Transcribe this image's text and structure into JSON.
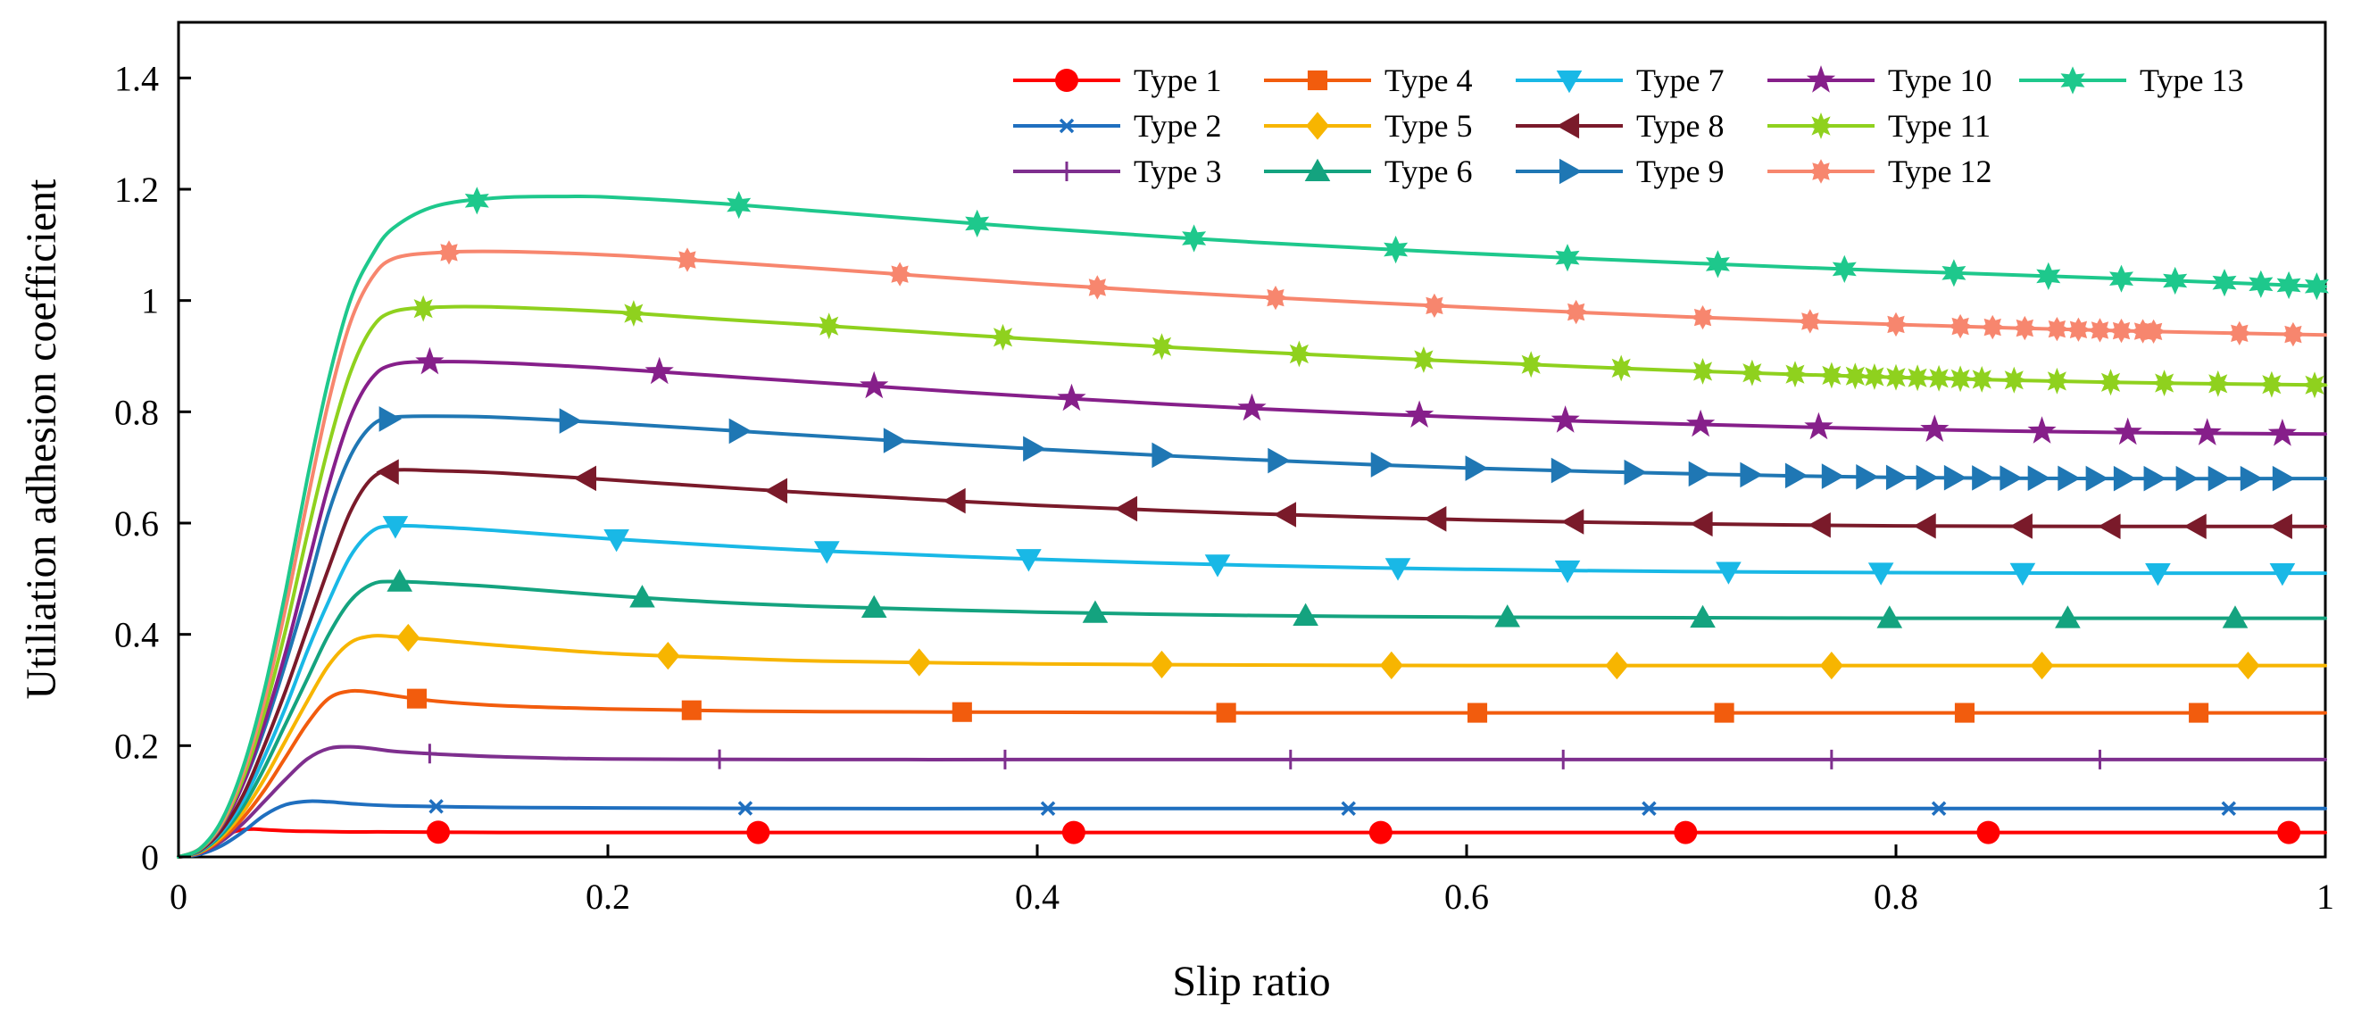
{
  "chart_data": {
    "type": "line",
    "title": "",
    "xlabel": "Slip ratio",
    "ylabel": "Utiliation adhesion coefficient",
    "xlim": [
      0,
      1
    ],
    "ylim": [
      0,
      1.5
    ],
    "xticks": [
      0,
      0.2,
      0.4,
      0.6,
      0.8,
      1
    ],
    "xtick_labels": [
      "0",
      "0.2",
      "0.4",
      "0.6",
      "0.8",
      "1"
    ],
    "yticks": [
      0,
      0.2,
      0.4,
      0.6,
      0.8,
      1,
      1.2,
      1.4
    ],
    "ytick_labels": [
      "0",
      "0.2",
      "0.4",
      "0.6",
      "0.8",
      "1",
      "1.2",
      "1.4"
    ],
    "grid": false,
    "legend_position": "top-right",
    "series": [
      {
        "name": "Type 1",
        "color": "#ff0000",
        "marker": "circle",
        "x": [
          0,
          0.005,
          0.01,
          0.015,
          0.02,
          0.025,
          0.03,
          0.035,
          0.04,
          0.05,
          0.06,
          0.08,
          0.1,
          0.15,
          0.2,
          0.3,
          0.4,
          0.5,
          0.6,
          0.7,
          0.8,
          0.9,
          1.0
        ],
        "y": [
          0,
          0.003,
          0.011,
          0.022,
          0.034,
          0.044,
          0.049,
          0.05,
          0.049,
          0.047,
          0.046,
          0.045,
          0.045,
          0.044,
          0.044,
          0.044,
          0.044,
          0.044,
          0.044,
          0.044,
          0.044,
          0.044,
          0.044
        ],
        "marker_x": [
          0.121,
          0.27,
          0.417,
          0.56,
          0.702,
          0.843,
          0.983
        ]
      },
      {
        "name": "Type 2",
        "color": "#1f6fbf",
        "marker": "x",
        "x": [
          0,
          0.01,
          0.02,
          0.03,
          0.04,
          0.05,
          0.06,
          0.07,
          0.08,
          0.1,
          0.15,
          0.2,
          0.3,
          0.4,
          0.5,
          0.6,
          0.7,
          0.8,
          0.9,
          1.0
        ],
        "y": [
          0,
          0.005,
          0.02,
          0.045,
          0.075,
          0.094,
          0.1,
          0.099,
          0.096,
          0.092,
          0.089,
          0.088,
          0.087,
          0.087,
          0.087,
          0.087,
          0.087,
          0.087,
          0.087,
          0.087
        ],
        "marker_x": [
          0.12,
          0.264,
          0.405,
          0.545,
          0.685,
          0.82,
          0.955
        ]
      },
      {
        "name": "Type 3",
        "color": "#7e2f8e",
        "marker": "plus",
        "x": [
          0,
          0.01,
          0.02,
          0.03,
          0.04,
          0.05,
          0.06,
          0.07,
          0.08,
          0.09,
          0.1,
          0.12,
          0.15,
          0.2,
          0.3,
          0.4,
          0.5,
          0.6,
          0.7,
          0.8,
          0.9,
          1.0
        ],
        "y": [
          0,
          0.007,
          0.028,
          0.06,
          0.1,
          0.14,
          0.176,
          0.195,
          0.198,
          0.195,
          0.19,
          0.185,
          0.18,
          0.176,
          0.175,
          0.175,
          0.175,
          0.175,
          0.175,
          0.175,
          0.175,
          0.175
        ],
        "marker_x": [
          0.117,
          0.252,
          0.385,
          0.518,
          0.645,
          0.77,
          0.895
        ]
      },
      {
        "name": "Type 4",
        "color": "#f25c0d",
        "marker": "square",
        "x": [
          0,
          0.01,
          0.02,
          0.03,
          0.04,
          0.05,
          0.06,
          0.07,
          0.08,
          0.09,
          0.1,
          0.12,
          0.15,
          0.2,
          0.25,
          0.3,
          0.4,
          0.5,
          0.6,
          0.7,
          0.8,
          0.9,
          1.0
        ],
        "y": [
          0,
          0.008,
          0.032,
          0.07,
          0.12,
          0.18,
          0.24,
          0.285,
          0.298,
          0.296,
          0.29,
          0.28,
          0.272,
          0.266,
          0.263,
          0.261,
          0.26,
          0.259,
          0.259,
          0.259,
          0.259,
          0.259,
          0.259
        ],
        "marker_x": [
          0.111,
          0.239,
          0.365,
          0.488,
          0.605,
          0.72,
          0.832,
          0.941
        ]
      },
      {
        "name": "Type 5",
        "color": "#f7b500",
        "marker": "diamond",
        "x": [
          0,
          0.01,
          0.02,
          0.03,
          0.04,
          0.05,
          0.06,
          0.07,
          0.08,
          0.09,
          0.1,
          0.12,
          0.15,
          0.2,
          0.25,
          0.3,
          0.4,
          0.5,
          0.6,
          0.7,
          0.8,
          0.9,
          1.0
        ],
        "y": [
          0,
          0.009,
          0.036,
          0.08,
          0.14,
          0.21,
          0.28,
          0.345,
          0.385,
          0.397,
          0.396,
          0.39,
          0.38,
          0.366,
          0.358,
          0.352,
          0.347,
          0.345,
          0.344,
          0.344,
          0.344,
          0.344,
          0.344
        ],
        "marker_x": [
          0.107,
          0.228,
          0.345,
          0.458,
          0.565,
          0.67,
          0.77,
          0.868,
          0.964
        ]
      },
      {
        "name": "Type 6",
        "color": "#14a37f",
        "marker": "triangle-up",
        "x": [
          0,
          0.01,
          0.02,
          0.03,
          0.04,
          0.05,
          0.06,
          0.07,
          0.08,
          0.09,
          0.1,
          0.12,
          0.15,
          0.2,
          0.25,
          0.3,
          0.4,
          0.5,
          0.6,
          0.7,
          0.8,
          0.9,
          1.0
        ],
        "y": [
          0,
          0.01,
          0.04,
          0.09,
          0.16,
          0.24,
          0.32,
          0.4,
          0.46,
          0.49,
          0.495,
          0.492,
          0.485,
          0.47,
          0.458,
          0.45,
          0.44,
          0.434,
          0.431,
          0.43,
          0.429,
          0.429,
          0.429
        ],
        "marker_x": [
          0.103,
          0.216,
          0.324,
          0.427,
          0.525,
          0.619,
          0.71,
          0.797,
          0.88,
          0.958
        ]
      },
      {
        "name": "Type 7",
        "color": "#19b8e6",
        "marker": "triangle-down",
        "x": [
          0,
          0.01,
          0.02,
          0.03,
          0.04,
          0.05,
          0.06,
          0.07,
          0.08,
          0.09,
          0.1,
          0.12,
          0.15,
          0.2,
          0.25,
          0.3,
          0.4,
          0.5,
          0.6,
          0.7,
          0.8,
          0.9,
          1.0
        ],
        "y": [
          0,
          0.011,
          0.044,
          0.1,
          0.18,
          0.27,
          0.37,
          0.46,
          0.54,
          0.585,
          0.595,
          0.593,
          0.586,
          0.572,
          0.56,
          0.55,
          0.535,
          0.524,
          0.517,
          0.513,
          0.511,
          0.51,
          0.51
        ],
        "marker_x": [
          0.101,
          0.204,
          0.302,
          0.396,
          0.484,
          0.568,
          0.647,
          0.722,
          0.793,
          0.859,
          0.922,
          0.98
        ]
      },
      {
        "name": "Type 8",
        "color": "#7a1a2a",
        "marker": "triangle-left",
        "x": [
          0,
          0.01,
          0.02,
          0.03,
          0.04,
          0.05,
          0.06,
          0.07,
          0.08,
          0.09,
          0.1,
          0.12,
          0.15,
          0.2,
          0.25,
          0.3,
          0.4,
          0.5,
          0.6,
          0.7,
          0.8,
          0.9,
          1.0
        ],
        "y": [
          0,
          0.012,
          0.048,
          0.11,
          0.2,
          0.3,
          0.41,
          0.52,
          0.62,
          0.68,
          0.695,
          0.694,
          0.69,
          0.678,
          0.665,
          0.653,
          0.632,
          0.617,
          0.606,
          0.599,
          0.595,
          0.594,
          0.594
        ],
        "marker_x": [
          0.098,
          0.19,
          0.279,
          0.362,
          0.442,
          0.516,
          0.586,
          0.65,
          0.71,
          0.765,
          0.814,
          0.859,
          0.9,
          0.94,
          0.98
        ]
      },
      {
        "name": "Type 9",
        "color": "#1f77b4",
        "marker": "triangle-right",
        "x": [
          0,
          0.01,
          0.02,
          0.03,
          0.04,
          0.05,
          0.06,
          0.07,
          0.08,
          0.09,
          0.1,
          0.12,
          0.15,
          0.2,
          0.25,
          0.3,
          0.4,
          0.5,
          0.6,
          0.7,
          0.8,
          0.9,
          1.0
        ],
        "y": [
          0,
          0.013,
          0.055,
          0.13,
          0.23,
          0.35,
          0.48,
          0.62,
          0.72,
          0.775,
          0.79,
          0.792,
          0.79,
          0.78,
          0.768,
          0.756,
          0.733,
          0.714,
          0.699,
          0.689,
          0.682,
          0.68,
          0.68
        ],
        "marker_x": [
          0.098,
          0.182,
          0.261,
          0.333,
          0.398,
          0.458,
          0.512,
          0.56,
          0.604,
          0.644,
          0.678,
          0.708,
          0.732,
          0.753,
          0.77,
          0.786,
          0.8,
          0.814,
          0.827,
          0.84,
          0.853,
          0.866,
          0.88,
          0.893,
          0.906,
          0.92,
          0.935,
          0.95,
          0.965,
          0.98
        ]
      },
      {
        "name": "Type 10",
        "color": "#861f8a",
        "marker": "star",
        "x": [
          0,
          0.01,
          0.02,
          0.03,
          0.04,
          0.05,
          0.06,
          0.07,
          0.08,
          0.09,
          0.1,
          0.12,
          0.15,
          0.2,
          0.25,
          0.3,
          0.4,
          0.5,
          0.6,
          0.7,
          0.8,
          0.9,
          1.0
        ],
        "y": [
          0,
          0.013,
          0.055,
          0.13,
          0.24,
          0.37,
          0.52,
          0.67,
          0.79,
          0.86,
          0.885,
          0.89,
          0.888,
          0.878,
          0.865,
          0.852,
          0.827,
          0.806,
          0.79,
          0.778,
          0.769,
          0.763,
          0.76
        ],
        "marker_x": [
          0.117,
          0.224,
          0.324,
          0.416,
          0.5,
          0.578,
          0.646,
          0.709,
          0.764,
          0.818,
          0.868,
          0.908,
          0.945,
          0.98
        ]
      },
      {
        "name": "Type 11",
        "color": "#8fd11e",
        "marker": "star-burst",
        "x": [
          0,
          0.01,
          0.02,
          0.03,
          0.04,
          0.05,
          0.06,
          0.07,
          0.08,
          0.09,
          0.1,
          0.12,
          0.15,
          0.2,
          0.25,
          0.3,
          0.4,
          0.5,
          0.6,
          0.7,
          0.8,
          0.9,
          1.0
        ],
        "y": [
          0,
          0.014,
          0.058,
          0.14,
          0.26,
          0.41,
          0.58,
          0.74,
          0.87,
          0.95,
          0.98,
          0.988,
          0.988,
          0.98,
          0.967,
          0.955,
          0.93,
          0.908,
          0.89,
          0.874,
          0.862,
          0.853,
          0.848
        ],
        "marker_x": [
          0.114,
          0.212,
          0.303,
          0.384,
          0.458,
          0.522,
          0.58,
          0.63,
          0.672,
          0.71,
          0.733,
          0.753,
          0.77,
          0.781,
          0.79,
          0.8,
          0.81,
          0.82,
          0.83,
          0.84,
          0.855,
          0.875,
          0.9,
          0.925,
          0.95,
          0.975,
          0.995
        ]
      },
      {
        "name": "Type 12",
        "color": "#f7866e",
        "marker": "asterisk",
        "x": [
          0,
          0.01,
          0.02,
          0.03,
          0.04,
          0.05,
          0.06,
          0.07,
          0.08,
          0.09,
          0.1,
          0.12,
          0.15,
          0.2,
          0.25,
          0.3,
          0.4,
          0.5,
          0.6,
          0.7,
          0.8,
          0.9,
          1.0
        ],
        "y": [
          0,
          0.015,
          0.06,
          0.15,
          0.28,
          0.45,
          0.64,
          0.82,
          0.96,
          1.04,
          1.075,
          1.086,
          1.088,
          1.082,
          1.07,
          1.057,
          1.03,
          1.007,
          0.988,
          0.971,
          0.957,
          0.946,
          0.938
        ],
        "marker_x": [
          0.126,
          0.237,
          0.336,
          0.428,
          0.511,
          0.585,
          0.651,
          0.71,
          0.76,
          0.8,
          0.83,
          0.845,
          0.86,
          0.875,
          0.885,
          0.895,
          0.905,
          0.915,
          0.92,
          0.96,
          0.985
        ]
      },
      {
        "name": "Type 13",
        "color": "#1ec88c",
        "marker": "star6",
        "x": [
          0,
          0.01,
          0.02,
          0.03,
          0.04,
          0.05,
          0.06,
          0.07,
          0.08,
          0.09,
          0.1,
          0.12,
          0.15,
          0.18,
          0.2,
          0.25,
          0.3,
          0.4,
          0.5,
          0.6,
          0.7,
          0.8,
          0.9,
          1.0
        ],
        "y": [
          0,
          0.015,
          0.065,
          0.16,
          0.3,
          0.48,
          0.68,
          0.86,
          1.0,
          1.08,
          1.13,
          1.17,
          1.185,
          1.187,
          1.186,
          1.175,
          1.16,
          1.13,
          1.105,
          1.085,
          1.068,
          1.053,
          1.04,
          1.025
        ],
        "marker_x": [
          0.139,
          0.261,
          0.372,
          0.473,
          0.567,
          0.647,
          0.717,
          0.776,
          0.827,
          0.871,
          0.905,
          0.93,
          0.953,
          0.97,
          0.983,
          0.996
        ]
      }
    ]
  }
}
